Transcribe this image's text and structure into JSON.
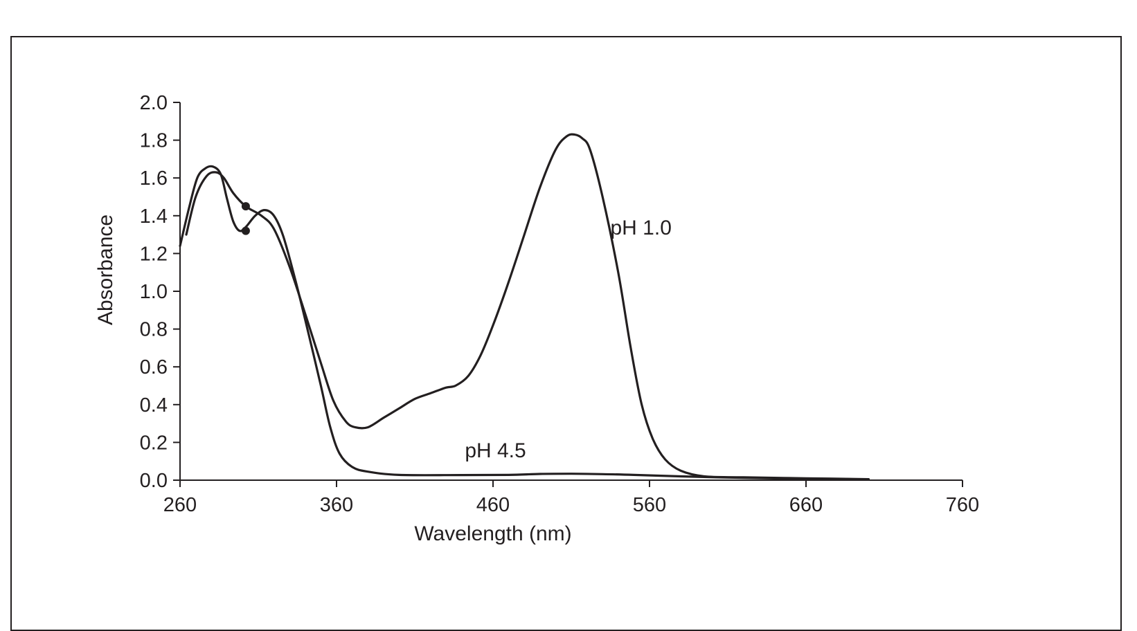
{
  "chart_data": {
    "type": "line",
    "title": "",
    "xlabel": "Wavelength (nm)",
    "ylabel": "Absorbance",
    "xlim": [
      260,
      760
    ],
    "ylim": [
      0,
      2.0
    ],
    "x_ticks": [
      "260",
      "360",
      "460",
      "560",
      "660",
      "760"
    ],
    "y_ticks": [
      "0.0",
      "0.2",
      "0.4",
      "0.6",
      "0.8",
      "1.0",
      "1.2",
      "1.4",
      "1.6",
      "1.8",
      "2.0"
    ],
    "grid": false,
    "legend": "none",
    "series": [
      {
        "name": "pH 1.0",
        "points": [
          [
            264,
            1.3
          ],
          [
            270,
            1.5
          ],
          [
            277,
            1.61
          ],
          [
            283,
            1.63
          ],
          [
            288,
            1.6
          ],
          [
            294,
            1.52
          ],
          [
            302,
            1.45
          ],
          [
            312,
            1.4
          ],
          [
            320,
            1.33
          ],
          [
            330,
            1.13
          ],
          [
            340,
            0.88
          ],
          [
            350,
            0.62
          ],
          [
            358,
            0.42
          ],
          [
            366,
            0.31
          ],
          [
            372,
            0.28
          ],
          [
            380,
            0.28
          ],
          [
            390,
            0.33
          ],
          [
            400,
            0.38
          ],
          [
            410,
            0.43
          ],
          [
            420,
            0.46
          ],
          [
            430,
            0.49
          ],
          [
            436,
            0.5
          ],
          [
            444,
            0.55
          ],
          [
            452,
            0.66
          ],
          [
            460,
            0.82
          ],
          [
            470,
            1.05
          ],
          [
            480,
            1.3
          ],
          [
            490,
            1.55
          ],
          [
            500,
            1.75
          ],
          [
            507,
            1.82
          ],
          [
            512,
            1.83
          ],
          [
            517,
            1.81
          ],
          [
            522,
            1.75
          ],
          [
            530,
            1.5
          ],
          [
            540,
            1.1
          ],
          [
            548,
            0.7
          ],
          [
            555,
            0.4
          ],
          [
            562,
            0.22
          ],
          [
            570,
            0.11
          ],
          [
            580,
            0.05
          ],
          [
            595,
            0.02
          ],
          [
            620,
            0.015
          ],
          [
            660,
            0.01
          ],
          [
            700,
            0.005
          ]
        ]
      },
      {
        "name": "pH 4.5",
        "points": [
          [
            260,
            1.24
          ],
          [
            266,
            1.45
          ],
          [
            271,
            1.6
          ],
          [
            276,
            1.65
          ],
          [
            281,
            1.66
          ],
          [
            286,
            1.62
          ],
          [
            290,
            1.49
          ],
          [
            294,
            1.37
          ],
          [
            298,
            1.32
          ],
          [
            302,
            1.34
          ],
          [
            308,
            1.4
          ],
          [
            314,
            1.43
          ],
          [
            320,
            1.4
          ],
          [
            326,
            1.29
          ],
          [
            334,
            1.05
          ],
          [
            342,
            0.78
          ],
          [
            350,
            0.5
          ],
          [
            356,
            0.28
          ],
          [
            362,
            0.14
          ],
          [
            370,
            0.07
          ],
          [
            380,
            0.045
          ],
          [
            400,
            0.028
          ],
          [
            440,
            0.027
          ],
          [
            470,
            0.028
          ],
          [
            490,
            0.033
          ],
          [
            510,
            0.034
          ],
          [
            530,
            0.032
          ],
          [
            550,
            0.028
          ],
          [
            580,
            0.02
          ],
          [
            620,
            0.012
          ],
          [
            660,
            0.008
          ],
          [
            700,
            0.004
          ]
        ]
      }
    ],
    "markers": [
      [
        302,
        1.45
      ],
      [
        302,
        1.32
      ]
    ],
    "annotations": [
      {
        "text": "pH 1.0",
        "x": 535,
        "y": 1.3
      },
      {
        "text": "pH 4.5",
        "x": 442,
        "y": 0.12
      }
    ],
    "line_color": "#231f20"
  }
}
